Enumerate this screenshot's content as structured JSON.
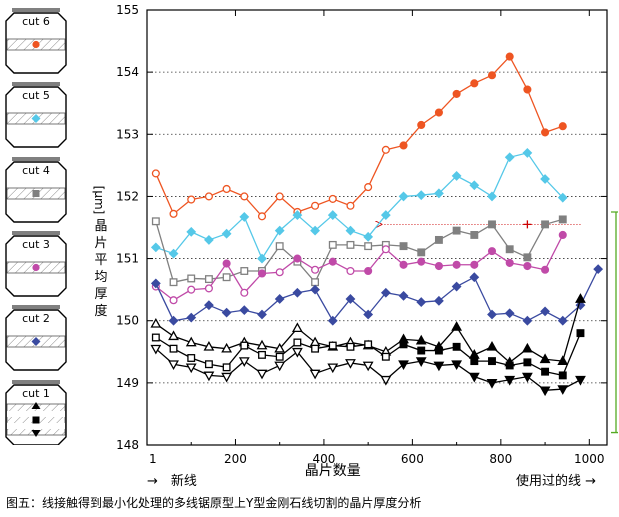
{
  "caption": "图五：线接触得到最小化处理的多线锯原型上Y型金刚石线切割的晶片厚度分析",
  "legend_cuts": [
    {
      "label": "cut 6",
      "color": "#ee5522"
    },
    {
      "label": "cut 5",
      "color": "#55c8e8"
    },
    {
      "label": "cut 4",
      "color": "#808080"
    },
    {
      "label": "cut 3",
      "color": "#c04aa8"
    },
    {
      "label": "cut 2",
      "color": "#3a4aa0"
    },
    {
      "label": "cut 1",
      "color": "#000000"
    }
  ],
  "axis_notes": {
    "left": "→　新线",
    "right": "使用过的线 →"
  },
  "chart_data": {
    "type": "line",
    "xlabel": "晶片数量",
    "ylabel": "晶片平均厚度 [μm]",
    "xlim": [
      0,
      1040
    ],
    "ylim": [
      148,
      155
    ],
    "xticks": [
      0,
      200,
      400,
      600,
      800,
      1000
    ],
    "xtick_labels": [
      "1",
      "200",
      "400",
      "600",
      "800",
      "1000"
    ],
    "yticks": [
      148,
      149,
      150,
      151,
      152,
      153,
      154,
      155
    ],
    "grid": "horizontal dotted",
    "series": [
      {
        "name": "cut 6",
        "color": "#ee5522",
        "marker": "circle",
        "x": [
          20,
          60,
          100,
          140,
          180,
          220,
          260,
          300,
          340,
          380,
          420,
          460,
          500,
          540,
          580,
          620,
          660,
          700,
          740,
          780,
          820,
          860,
          900,
          940
        ],
        "y": [
          152.37,
          151.72,
          151.95,
          152.0,
          152.12,
          152.0,
          151.68,
          152.0,
          151.75,
          151.85,
          151.96,
          151.85,
          152.15,
          152.75,
          152.82,
          153.15,
          153.35,
          153.65,
          153.82,
          153.95,
          154.25,
          153.72,
          153.03,
          153.13
        ]
      },
      {
        "name": "cut 5",
        "color": "#55c8e8",
        "marker": "diamond",
        "x": [
          20,
          60,
          100,
          140,
          180,
          220,
          260,
          300,
          340,
          380,
          420,
          460,
          500,
          540,
          580,
          620,
          660,
          700,
          740,
          780,
          820,
          860,
          900,
          940
        ],
        "y": [
          151.18,
          151.08,
          151.43,
          151.3,
          151.4,
          151.67,
          151.0,
          151.45,
          151.7,
          151.45,
          151.7,
          151.45,
          151.35,
          151.7,
          152.0,
          152.02,
          152.05,
          152.33,
          152.18,
          152.0,
          152.63,
          152.7,
          152.28,
          151.98
        ]
      },
      {
        "name": "cut 4",
        "color": "#808080",
        "marker": "square",
        "x": [
          20,
          60,
          100,
          140,
          180,
          220,
          260,
          300,
          340,
          380,
          420,
          460,
          500,
          540,
          580,
          620,
          660,
          700,
          740,
          780,
          820,
          860,
          900,
          940
        ],
        "y": [
          151.6,
          150.62,
          150.68,
          150.67,
          150.7,
          150.8,
          150.8,
          151.2,
          150.95,
          150.62,
          151.22,
          151.22,
          151.2,
          151.22,
          151.2,
          151.1,
          151.3,
          151.45,
          151.38,
          151.55,
          151.15,
          151.02,
          151.55,
          151.63
        ]
      },
      {
        "name": "cut 3",
        "color": "#c04aa8",
        "marker": "circle",
        "x": [
          20,
          60,
          100,
          140,
          180,
          220,
          260,
          300,
          340,
          380,
          420,
          460,
          500,
          540,
          580,
          620,
          660,
          700,
          740,
          780,
          820,
          860,
          900,
          940
        ],
        "y": [
          150.55,
          150.33,
          150.5,
          150.52,
          150.92,
          150.45,
          150.76,
          150.78,
          151.0,
          150.82,
          150.95,
          150.8,
          150.8,
          151.15,
          150.9,
          150.95,
          150.88,
          150.9,
          150.9,
          151.12,
          150.93,
          150.88,
          150.82,
          151.38
        ]
      },
      {
        "name": "cut 2",
        "color": "#3a4aa0",
        "marker": "diamond",
        "x": [
          20,
          60,
          100,
          140,
          180,
          220,
          260,
          300,
          340,
          380,
          420,
          460,
          500,
          540,
          580,
          620,
          660,
          700,
          740,
          780,
          820,
          860,
          900,
          940,
          980,
          1020
        ],
        "y": [
          150.6,
          150.0,
          150.05,
          150.25,
          150.13,
          150.17,
          150.1,
          150.35,
          150.45,
          150.5,
          150.0,
          150.35,
          150.1,
          150.45,
          150.4,
          150.3,
          150.32,
          150.55,
          150.7,
          150.1,
          150.12,
          150.0,
          150.15,
          150.0,
          150.25,
          150.83
        ]
      },
      {
        "name": "cut 1 ▲",
        "color": "#000000",
        "marker": "triangle-up",
        "x": [
          20,
          60,
          100,
          140,
          180,
          220,
          260,
          300,
          340,
          380,
          420,
          460,
          500,
          540,
          580,
          620,
          660,
          700,
          740,
          780,
          820,
          860,
          900,
          940,
          980
        ],
        "y": [
          149.95,
          149.75,
          149.65,
          149.58,
          149.55,
          149.65,
          149.6,
          149.55,
          149.88,
          149.65,
          149.58,
          149.65,
          149.6,
          149.5,
          149.7,
          149.68,
          149.58,
          149.9,
          149.45,
          149.58,
          149.33,
          149.55,
          149.38,
          149.35,
          150.35
        ]
      },
      {
        "name": "cut 1 ■",
        "color": "#000000",
        "marker": "square",
        "x": [
          20,
          60,
          100,
          140,
          180,
          220,
          260,
          300,
          340,
          380,
          420,
          460,
          500,
          540,
          580,
          620,
          660,
          700,
          740,
          780,
          820,
          860,
          900,
          940,
          980
        ],
        "y": [
          149.73,
          149.55,
          149.4,
          149.3,
          149.25,
          149.6,
          149.45,
          149.42,
          149.65,
          149.55,
          149.6,
          149.58,
          149.62,
          149.42,
          149.62,
          149.52,
          149.52,
          149.58,
          149.35,
          149.35,
          149.28,
          149.33,
          149.18,
          149.12,
          149.8
        ]
      },
      {
        "name": "cut 1 ▼",
        "color": "#000000",
        "marker": "triangle-down",
        "x": [
          20,
          60,
          100,
          140,
          180,
          220,
          260,
          300,
          340,
          380,
          420,
          460,
          500,
          540,
          580,
          620,
          660,
          700,
          740,
          780,
          820,
          860,
          900,
          940,
          980
        ],
        "y": [
          149.55,
          149.3,
          149.25,
          149.12,
          149.1,
          149.35,
          149.15,
          149.28,
          149.5,
          149.15,
          149.25,
          149.32,
          149.28,
          149.05,
          149.3,
          149.35,
          149.28,
          149.3,
          149.1,
          149.0,
          149.05,
          149.1,
          148.88,
          148.9,
          149.05
        ]
      }
    ],
    "annotations": [
      {
        "type": "dotted-arrow",
        "color": "#cc0000",
        "from": [
          980,
          151.55
        ],
        "to": [
          530,
          151.55
        ]
      },
      {
        "type": "plus-marker",
        "color": "#cc0000",
        "at": [
          860,
          151.55
        ]
      },
      {
        "type": "range-bar",
        "color": "#55aa22",
        "from": 151.75,
        "to": 148.2
      }
    ]
  }
}
